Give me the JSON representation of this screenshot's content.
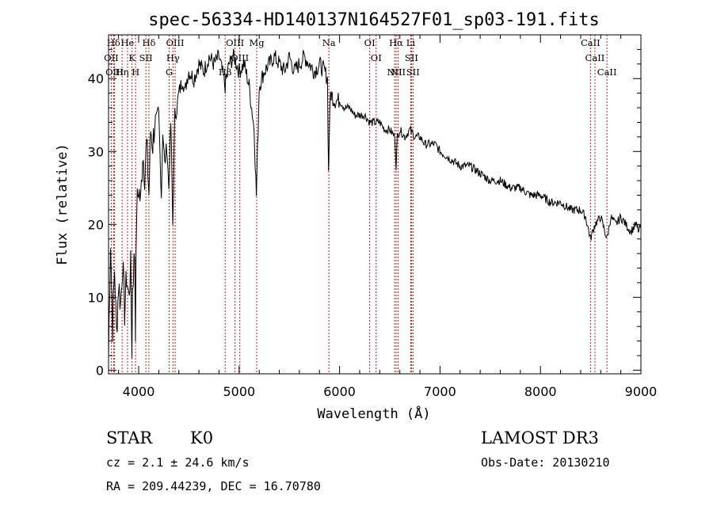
{
  "chart_data": {
    "type": "line",
    "title": "spec-56334-HD140137N164527F01_sp03-191.fits",
    "xlabel": "Wavelength (Å)",
    "ylabel": "Flux (relative)",
    "xlim": [
      3700,
      9000
    ],
    "ylim": [
      -0.5,
      46
    ],
    "xticks": [
      4000,
      5000,
      6000,
      7000,
      8000,
      9000
    ],
    "yticks": [
      0,
      10,
      20,
      30,
      40
    ],
    "series": [
      {
        "x": [
          3700,
          3720,
          3740,
          3760,
          3780,
          3800,
          3820,
          3840,
          3860,
          3880,
          3900,
          3920,
          3933,
          3940,
          3960,
          3968,
          3980,
          4000,
          4020,
          4040,
          4060,
          4080,
          4102,
          4120,
          4140,
          4160,
          4180,
          4200,
          4226,
          4240,
          4260,
          4280,
          4300,
          4320,
          4340,
          4360,
          4380,
          4400,
          4420,
          4440,
          4460,
          4480,
          4500,
          4550,
          4600,
          4650,
          4700,
          4750,
          4800,
          4861,
          4900,
          4950,
          5000,
          5050,
          5100,
          5150,
          5172,
          5183,
          5200,
          5250,
          5300,
          5350,
          5400,
          5450,
          5500,
          5550,
          5600,
          5650,
          5700,
          5750,
          5800,
          5850,
          5880,
          5890,
          5896,
          5910,
          5950,
          6000,
          6050,
          6100,
          6150,
          6200,
          6250,
          6300,
          6350,
          6400,
          6450,
          6500,
          6550,
          6563,
          6575,
          6600,
          6650,
          6700,
          6750,
          6800,
          6850,
          6900,
          6950,
          7000,
          7100,
          7200,
          7300,
          7400,
          7500,
          7600,
          7700,
          7800,
          7900,
          8000,
          8100,
          8200,
          8300,
          8400,
          8450,
          8498,
          8542,
          8600,
          8662,
          8700,
          8750,
          8800,
          8850,
          8900,
          8950,
          8980,
          9000
        ],
        "y": [
          2,
          18,
          6,
          14,
          5,
          12,
          9,
          15,
          8,
          13,
          10,
          14,
          3,
          12,
          16,
          6,
          22,
          25,
          23,
          30,
          27,
          31,
          24,
          33,
          31,
          34,
          33,
          35,
          24,
          33,
          28,
          31,
          25,
          34,
          20,
          35,
          36,
          38,
          39,
          40,
          38,
          40,
          41,
          40,
          42,
          41,
          43,
          42,
          43,
          39,
          42,
          43,
          41,
          42,
          39,
          33,
          24,
          30,
          39,
          41,
          42,
          43,
          42,
          41,
          43,
          41,
          42,
          43,
          42,
          41,
          42,
          41,
          40,
          27,
          31,
          38,
          37,
          37,
          36,
          36,
          35,
          35,
          35,
          34,
          34,
          34,
          33,
          33,
          32,
          28,
          32,
          33,
          32,
          33,
          32,
          32,
          31,
          31,
          31,
          30,
          29,
          28,
          28,
          27,
          26,
          26,
          25,
          25,
          24,
          24,
          23,
          23,
          22,
          22,
          21,
          18,
          20,
          21,
          18,
          21,
          20,
          21,
          20,
          19,
          20,
          19,
          20
        ]
      }
    ],
    "lines": [
      {
        "label": "Hδ",
        "x": 3750
      },
      {
        "label": "OII",
        "x": 3727
      },
      {
        "label": "OIII",
        "x": 3760
      },
      {
        "label": "He",
        "x": 3889
      },
      {
        "label": "Hη",
        "x": 3835
      },
      {
        "label": "K",
        "x": 3934
      },
      {
        "label": "H",
        "x": 3969
      },
      {
        "label": "Hδ",
        "x": 4102
      },
      {
        "label": "SII",
        "x": 4072
      },
      {
        "label": "OIII",
        "x": 4363
      },
      {
        "label": "Hγ",
        "x": 4341
      },
      {
        "label": "G",
        "x": 4304
      },
      {
        "label": "OIII",
        "x": 4959
      },
      {
        "label": "OIII",
        "x": 5007
      },
      {
        "label": "Hβ",
        "x": 4861
      },
      {
        "label": "Mg",
        "x": 5175
      },
      {
        "label": "Na",
        "x": 5894
      },
      {
        "label": "OI",
        "x": 6300
      },
      {
        "label": "OI",
        "x": 6364
      },
      {
        "label": "Hα",
        "x": 6563
      },
      {
        "label": "SII",
        "x": 6716
      },
      {
        "label": "NII",
        "x": 6548
      },
      {
        "label": "NII",
        "x": 6583
      },
      {
        "label": "Li",
        "x": 6708
      },
      {
        "label": "SII",
        "x": 6731
      },
      {
        "label": "CaII",
        "x": 8498
      },
      {
        "label": "CaII",
        "x": 8542
      },
      {
        "label": "CaII",
        "x": 8662
      }
    ],
    "grid": false
  },
  "info": {
    "class": "STAR",
    "subclass": "K0",
    "survey": "LAMOST DR3",
    "cz": "cz = 2.1 ± 24.6 km/s",
    "obs_date": "Obs-Date: 20130210",
    "radec": "RA = 209.44239, DEC =  16.70780"
  },
  "colors": {
    "spectrum": "#000000",
    "line_markers": "#b22222"
  }
}
